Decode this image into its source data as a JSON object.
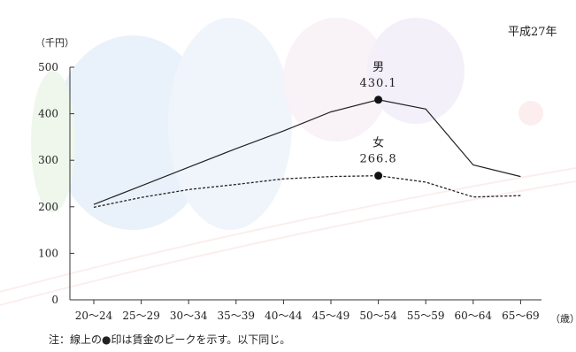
{
  "chart_data": {
    "type": "line",
    "title": "",
    "year_label": "平成27年",
    "ylabel": "（千円）",
    "xlabel": "（歳）",
    "ylim": [
      0,
      500
    ],
    "yticks": [
      "0",
      "100",
      "200",
      "300",
      "400",
      "500"
    ],
    "categories": [
      "20～24",
      "25～29",
      "30～34",
      "35～39",
      "40～44",
      "45～49",
      "50～54",
      "55～59",
      "60～64",
      "65～69"
    ],
    "series": [
      {
        "name": "男",
        "style": "solid",
        "values": [
          205,
          245,
          285,
          325,
          363,
          404,
          430.1,
          410,
          290,
          265
        ],
        "peak_index": 6,
        "peak_label": "430.1"
      },
      {
        "name": "女",
        "style": "dashed",
        "values": [
          199,
          220,
          237,
          248,
          260,
          265,
          266.8,
          253,
          221,
          224
        ],
        "peak_index": 6,
        "peak_label": "266.8"
      }
    ],
    "colors": {
      "line": "#222222",
      "axis": "#333333",
      "marker": "#111111"
    }
  },
  "note": "注：線上の●印は賃金のピークを示す。以下同じ。"
}
